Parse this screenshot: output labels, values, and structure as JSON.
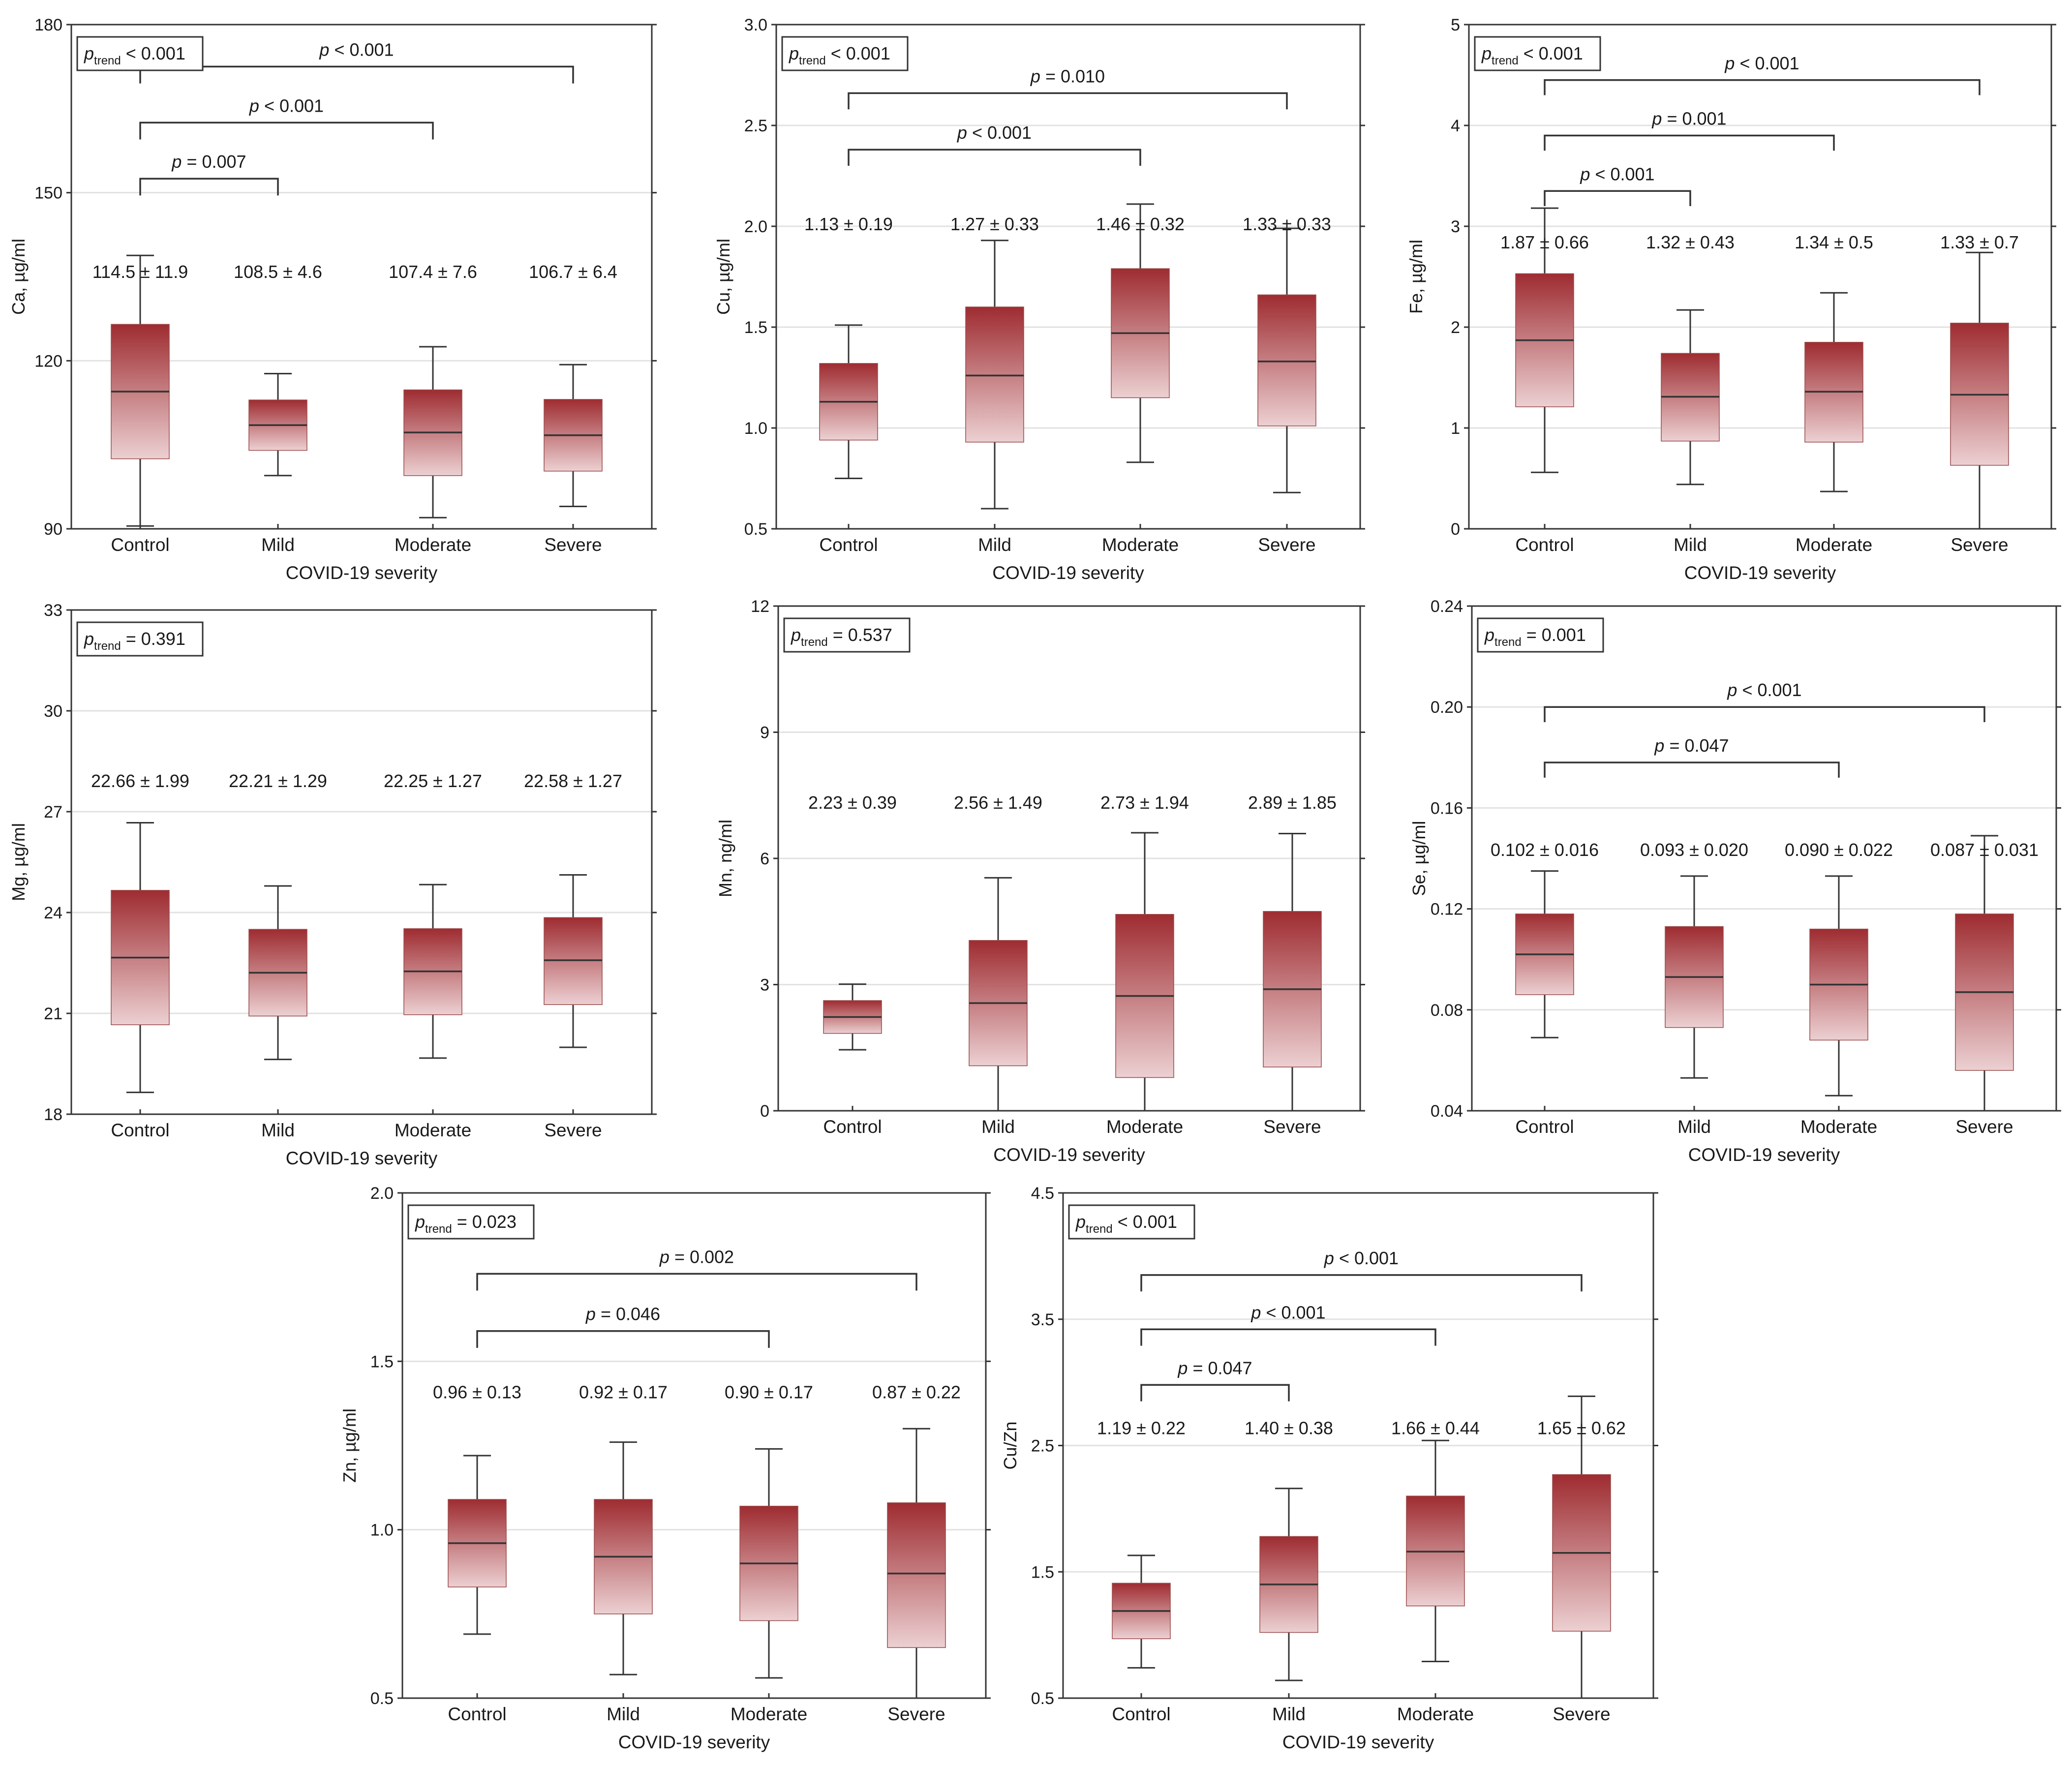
{
  "colors": {
    "box_top": "#9e2c31",
    "box_bottom": "#ecd0d2",
    "frame": "#333333",
    "grid": "#e2e2e2"
  },
  "chart_data": [
    {
      "type": "box",
      "panel": "Ca",
      "ylabel": "Ca, µg/ml",
      "xlabel": "COVID-19 severity",
      "ylim": [
        90,
        180
      ],
      "yticks": [
        "90",
        "120",
        "150",
        "180"
      ],
      "grid_y": [
        120,
        150
      ],
      "categories": [
        "Control",
        "Mild",
        "Moderate",
        "Severe"
      ],
      "ptrend_op": "<",
      "ptrend_value": "0.001",
      "boxes": [
        {
          "min": 90.5,
          "q1": 102.5,
          "median": 114.5,
          "q3": 126.5,
          "max": 138.8
        },
        {
          "min": 99.5,
          "q1": 104,
          "median": 108.5,
          "q3": 113,
          "max": 117.7
        },
        {
          "min": 92,
          "q1": 99.5,
          "median": 107.2,
          "q3": 114.8,
          "max": 122.5
        },
        {
          "min": 94,
          "q1": 100.3,
          "median": 106.7,
          "q3": 113.1,
          "max": 119.3
        }
      ],
      "means": [
        "114.5 ± 11.9",
        "108.5 ± 4.6",
        "107.4 ± 7.6",
        "106.7 ± 6.4"
      ],
      "mean_label_y": 134.8,
      "comparisons": [
        {
          "from": 0,
          "to": 3,
          "value": "p < 0.001",
          "y": 172.5,
          "tick": 169.5
        },
        {
          "from": 0,
          "to": 2,
          "value": "p < 0.001",
          "y": 162.5,
          "tick": 159.5
        },
        {
          "from": 0,
          "to": 1,
          "value": "p = 0.007",
          "y": 152.5,
          "tick": 149.5
        }
      ]
    },
    {
      "type": "box",
      "panel": "Cu",
      "ylabel": "Cu, µg/ml",
      "xlabel": "COVID-19 severity",
      "ylim": [
        0.5,
        3.0
      ],
      "yticks": [
        "0.5",
        "1.0",
        "1.5",
        "2.0",
        "2.5",
        "3.0"
      ],
      "grid_y": [
        1.0,
        1.5,
        2.0,
        2.5
      ],
      "categories": [
        "Control",
        "Mild",
        "Moderate",
        "Severe"
      ],
      "ptrend_op": "<",
      "ptrend_value": "0.001",
      "boxes": [
        {
          "min": 0.75,
          "q1": 0.94,
          "median": 1.13,
          "q3": 1.32,
          "max": 1.51
        },
        {
          "min": 0.6,
          "q1": 0.93,
          "median": 1.26,
          "q3": 1.6,
          "max": 1.93
        },
        {
          "min": 0.83,
          "q1": 1.15,
          "median": 1.47,
          "q3": 1.79,
          "max": 2.11
        },
        {
          "min": 0.68,
          "q1": 1.01,
          "median": 1.33,
          "q3": 1.66,
          "max": 1.99
        }
      ],
      "means": [
        "1.13 ± 0.19",
        "1.27 ± 0.33",
        "1.46 ± 0.32",
        "1.33 ± 0.33"
      ],
      "mean_label_y": 1.98,
      "comparisons": [
        {
          "from": 0,
          "to": 3,
          "value": "p = 0.010",
          "y": 2.66,
          "tick": 2.58
        },
        {
          "from": 0,
          "to": 2,
          "value": "p < 0.001",
          "y": 2.38,
          "tick": 2.3
        }
      ]
    },
    {
      "type": "box",
      "panel": "Fe",
      "ylabel": "Fe, µg/ml",
      "xlabel": "COVID-19 severity",
      "ylim": [
        0,
        5
      ],
      "yticks": [
        "0",
        "1",
        "2",
        "3",
        "4",
        "5"
      ],
      "grid_y": [
        1,
        2,
        3,
        4
      ],
      "categories": [
        "Control",
        "Mild",
        "Moderate",
        "Severe"
      ],
      "ptrend_op": "<",
      "ptrend_value": "0.001",
      "boxes": [
        {
          "min": 0.56,
          "q1": 1.21,
          "median": 1.87,
          "q3": 2.53,
          "max": 3.18
        },
        {
          "min": 0.44,
          "q1": 0.87,
          "median": 1.31,
          "q3": 1.74,
          "max": 2.17
        },
        {
          "min": 0.37,
          "q1": 0.86,
          "median": 1.36,
          "q3": 1.85,
          "max": 2.34
        },
        {
          "min": 0.0,
          "q1": 0.63,
          "median": 1.33,
          "q3": 2.04,
          "max": 2.74
        }
      ],
      "means": [
        "1.87 ± 0.66",
        "1.32 ± 0.43",
        "1.34 ± 0.5",
        "1.33 ± 0.7"
      ],
      "mean_label_y": 2.78,
      "comparisons": [
        {
          "from": 0,
          "to": 3,
          "value": "p < 0.001",
          "y": 4.45,
          "tick": 4.3
        },
        {
          "from": 0,
          "to": 2,
          "value": "p = 0.001",
          "y": 3.9,
          "tick": 3.75
        },
        {
          "from": 0,
          "to": 1,
          "value": "p < 0.001",
          "y": 3.35,
          "tick": 3.2
        }
      ]
    },
    {
      "type": "box",
      "panel": "Mg",
      "ylabel": "Mg, µg/ml",
      "xlabel": "COVID-19 severity",
      "ylim": [
        18,
        33
      ],
      "yticks": [
        "18",
        "21",
        "24",
        "27",
        "30",
        "33"
      ],
      "grid_y": [
        21,
        24,
        27,
        30
      ],
      "categories": [
        "Control",
        "Mild",
        "Moderate",
        "Severe"
      ],
      "ptrend_op": "=",
      "ptrend_value": "0.391",
      "boxes": [
        {
          "min": 18.65,
          "q1": 20.66,
          "median": 22.66,
          "q3": 24.66,
          "max": 26.67
        },
        {
          "min": 19.63,
          "q1": 20.92,
          "median": 22.21,
          "q3": 23.5,
          "max": 24.79
        },
        {
          "min": 19.67,
          "q1": 20.96,
          "median": 22.25,
          "q3": 23.52,
          "max": 24.83
        },
        {
          "min": 19.99,
          "q1": 21.26,
          "median": 22.58,
          "q3": 23.85,
          "max": 25.12
        }
      ],
      "means": [
        "22.66 ± 1.99",
        "22.21 ± 1.29",
        "22.25 ± 1.27",
        "22.58 ± 1.27"
      ],
      "mean_label_y": 27.73,
      "comparisons": []
    },
    {
      "type": "box",
      "panel": "Mn",
      "ylabel": "Mn, ng/ml",
      "xlabel": "COVID-19 severity",
      "ylim": [
        0,
        12
      ],
      "yticks": [
        "0",
        "3",
        "6",
        "9",
        "12"
      ],
      "grid_y": [
        3,
        6,
        9
      ],
      "categories": [
        "Control",
        "Mild",
        "Moderate",
        "Severe"
      ],
      "ptrend_op": "=",
      "ptrend_value": "0.537",
      "boxes": [
        {
          "min": 1.45,
          "q1": 1.84,
          "median": 2.23,
          "q3": 2.62,
          "max": 3.01
        },
        {
          "min": 0.0,
          "q1": 1.07,
          "median": 2.56,
          "q3": 4.05,
          "max": 5.54
        },
        {
          "min": 0.0,
          "q1": 0.79,
          "median": 2.73,
          "q3": 4.67,
          "max": 6.61
        },
        {
          "min": 0.0,
          "q1": 1.04,
          "median": 2.89,
          "q3": 4.74,
          "max": 6.59
        }
      ],
      "means": [
        "2.23 ± 0.39",
        "2.56 ± 1.49",
        "2.73 ± 1.94",
        "2.89 ± 1.85"
      ],
      "mean_label_y": 7.18,
      "comparisons": []
    },
    {
      "type": "box",
      "panel": "Se",
      "ylabel": "Se, µg/ml",
      "xlabel": "COVID-19 severity",
      "ylim": [
        0.04,
        0.24
      ],
      "yticks": [
        "0.04",
        "0.08",
        "0.12",
        "0.16",
        "0.20",
        "0.24"
      ],
      "grid_y": [
        0.08,
        0.12,
        0.16,
        0.2
      ],
      "categories": [
        "Control",
        "Mild",
        "Moderate",
        "Severe"
      ],
      "ptrend_op": "=",
      "ptrend_value": "0.001",
      "boxes": [
        {
          "min": 0.069,
          "q1": 0.086,
          "median": 0.102,
          "q3": 0.118,
          "max": 0.135
        },
        {
          "min": 0.053,
          "q1": 0.073,
          "median": 0.093,
          "q3": 0.113,
          "max": 0.133
        },
        {
          "min": 0.046,
          "q1": 0.068,
          "median": 0.09,
          "q3": 0.112,
          "max": 0.133
        },
        {
          "min": 0.04,
          "q1": 0.056,
          "median": 0.087,
          "q3": 0.118,
          "max": 0.149
        }
      ],
      "means": [
        "0.102 ± 0.016",
        "0.093 ± 0.020",
        "0.090 ± 0.022",
        "0.087 ± 0.031"
      ],
      "mean_label_y": 0.141,
      "comparisons": [
        {
          "from": 0,
          "to": 3,
          "value": "p < 0.001",
          "y": 0.2,
          "tick": 0.194
        },
        {
          "from": 0,
          "to": 2,
          "value": "p = 0.047",
          "y": 0.178,
          "tick": 0.172
        }
      ]
    },
    {
      "type": "box",
      "panel": "Zn",
      "ylabel": "Zn, µg/ml",
      "xlabel": "COVID-19 severity",
      "ylim": [
        0.5,
        2.0
      ],
      "yticks": [
        "0.5",
        "1.0",
        "1.5",
        "2.0"
      ],
      "grid_y": [
        1.0,
        1.5
      ],
      "categories": [
        "Control",
        "Mild",
        "Moderate",
        "Severe"
      ],
      "ptrend_op": "=",
      "ptrend_value": "0.023",
      "boxes": [
        {
          "min": 0.69,
          "q1": 0.83,
          "median": 0.96,
          "q3": 1.09,
          "max": 1.22
        },
        {
          "min": 0.57,
          "q1": 0.75,
          "median": 0.92,
          "q3": 1.09,
          "max": 1.26
        },
        {
          "min": 0.56,
          "q1": 0.73,
          "median": 0.9,
          "q3": 1.07,
          "max": 1.24
        },
        {
          "min": 0.5,
          "q1": 0.65,
          "median": 0.87,
          "q3": 1.08,
          "max": 1.3
        }
      ],
      "means": [
        "0.96 ± 0.13",
        "0.92 ± 0.17",
        "0.90 ± 0.17",
        "0.87 ± 0.22"
      ],
      "mean_label_y": 1.39,
      "comparisons": [
        {
          "from": 0,
          "to": 3,
          "value": "p = 0.002",
          "y": 1.76,
          "tick": 1.71
        },
        {
          "from": 0,
          "to": 2,
          "value": "p = 0.046",
          "y": 1.59,
          "tick": 1.54
        }
      ]
    },
    {
      "type": "box",
      "panel": "Cu/Zn",
      "ylabel": "Cu/Zn",
      "xlabel": "COVID-19 severity",
      "ylim": [
        0.5,
        4.5
      ],
      "yticks": [
        "0.5",
        "1.5",
        "2.5",
        "3.5",
        "4.5"
      ],
      "grid_y": [
        1.5,
        2.5,
        3.5
      ],
      "categories": [
        "Control",
        "Mild",
        "Moderate",
        "Severe"
      ],
      "ptrend_op": "<",
      "ptrend_value": "0.001",
      "boxes": [
        {
          "min": 0.74,
          "q1": 0.97,
          "median": 1.19,
          "q3": 1.41,
          "max": 1.63
        },
        {
          "min": 0.64,
          "q1": 1.02,
          "median": 1.4,
          "q3": 1.78,
          "max": 2.16
        },
        {
          "min": 0.79,
          "q1": 1.23,
          "median": 1.66,
          "q3": 2.1,
          "max": 2.54
        },
        {
          "min": 0.5,
          "q1": 1.03,
          "median": 1.65,
          "q3": 2.27,
          "max": 2.89
        }
      ],
      "means": [
        "1.19 ± 0.22",
        "1.40 ± 0.38",
        "1.66 ± 0.44",
        "1.65 ± 0.62"
      ],
      "mean_label_y": 2.59,
      "comparisons": [
        {
          "from": 0,
          "to": 3,
          "value": "p < 0.001",
          "y": 3.85,
          "tick": 3.72
        },
        {
          "from": 0,
          "to": 2,
          "value": "p < 0.001",
          "y": 3.42,
          "tick": 3.29
        },
        {
          "from": 0,
          "to": 1,
          "value": "p = 0.047",
          "y": 2.98,
          "tick": 2.85
        }
      ]
    }
  ]
}
